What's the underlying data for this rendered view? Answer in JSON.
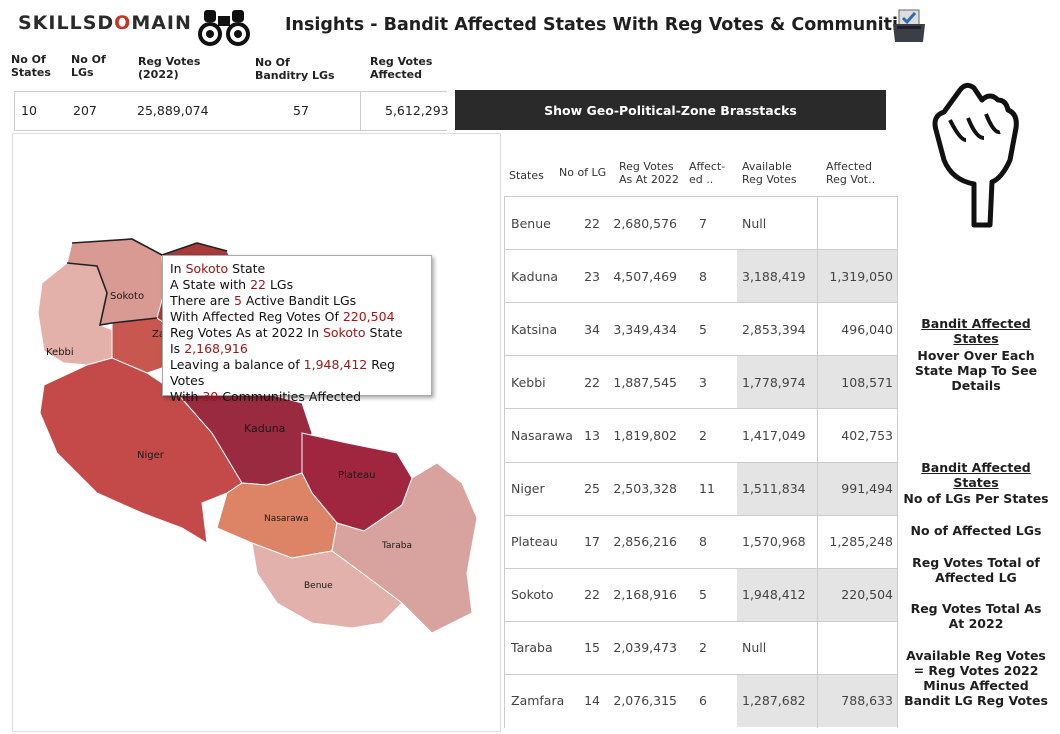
{
  "header": {
    "logo_text": "SKILLSDOMAIN",
    "title": "Insights - Bandit Affected States With Reg Votes & Communities",
    "binoculars_icon": "binoculars-icon",
    "ballot_icon": "ballot-box-icon"
  },
  "kpis": {
    "headers": {
      "states": [
        "No Of",
        "States"
      ],
      "lgs": [
        "No Of",
        "LGs"
      ],
      "reg_votes": [
        "Reg Votes",
        "(2022)"
      ],
      "bandit_lgs": [
        "No Of",
        "Banditry LGs"
      ],
      "affected": [
        "Reg Votes",
        "Affected"
      ]
    },
    "values": {
      "states": "10",
      "lgs": "207",
      "reg_votes": "25,889,074",
      "bandit_lgs": "57",
      "affected": "5,612,293"
    }
  },
  "button": {
    "label": "Show Geo-Political-Zone Brasstacks"
  },
  "map": {
    "labels": {
      "sokoto": "Sokoto",
      "kebbi": "Kebbi",
      "zamfara": "Za",
      "niger": "Niger",
      "kaduna": "Kaduna",
      "plateau": "Plateau",
      "nasarawa": "Nasarawa",
      "taraba": "Taraba",
      "benue": "Benue"
    },
    "colors": {
      "sokoto": "#d99a93",
      "kebbi": "#e4b1aa",
      "zamfara": "#c8584f",
      "katsina": "#a83a3a",
      "niger": "#c44a4a",
      "kaduna": "#9a2a3f",
      "plateau": "#a0263f",
      "nasarawa": "#de8466",
      "taraba": "#d8a39e",
      "benue": "#e2b1ab"
    }
  },
  "tooltip": {
    "l1a": "In ",
    "l1b": "Sokoto",
    "l1c": " State",
    "l2a": "A State with ",
    "l2b": "22",
    "l2c": " LGs",
    "l3a": "There are ",
    "l3b": "5",
    "l3c": " Active Bandit LGs",
    "l4a": "With Affected Reg Votes Of ",
    "l4b": "220,504",
    "l5a": "Reg Votes As at 2022  In ",
    "l5b": "Sokoto",
    "l5c": " State",
    "l6a": "Is ",
    "l6b": "2,168,916",
    "l7a": "Leaving a balance of ",
    "l7b": "1,948,412",
    "l7c": " Reg Votes",
    "l8a": "With ",
    "l8b": "30",
    "l8c": " Communities Affected"
  },
  "table": {
    "headers": {
      "states": "States",
      "lg": "No of LG",
      "reg": [
        "Reg Votes",
        "As  At 2022"
      ],
      "affected": [
        "Affect-",
        "ed .."
      ],
      "available": [
        "Available",
        "Reg Votes"
      ],
      "aff_votes": [
        "Affected",
        "Reg Vot.."
      ]
    },
    "rows": [
      {
        "state": "Benue",
        "lg": "22",
        "reg": "2,680,576",
        "aff": "7",
        "avail": "Null",
        "affv": ""
      },
      {
        "state": "Kaduna",
        "lg": "23",
        "reg": "4,507,469",
        "aff": "8",
        "avail": "3,188,419",
        "affv": "1,319,050"
      },
      {
        "state": "Katsina",
        "lg": "34",
        "reg": "3,349,434",
        "aff": "5",
        "avail": "2,853,394",
        "affv": "496,040"
      },
      {
        "state": "Kebbi",
        "lg": "22",
        "reg": "1,887,545",
        "aff": "3",
        "avail": "1,778,974",
        "affv": "108,571"
      },
      {
        "state": "Nasarawa",
        "lg": "13",
        "reg": "1,819,802",
        "aff": "2",
        "avail": "1,417,049",
        "affv": "402,753"
      },
      {
        "state": "Niger",
        "lg": "25",
        "reg": "2,503,328",
        "aff": "11",
        "avail": "1,511,834",
        "affv": "991,494"
      },
      {
        "state": "Plateau",
        "lg": "17",
        "reg": "2,856,216",
        "aff": "8",
        "avail": "1,570,968",
        "affv": "1,285,248"
      },
      {
        "state": "Sokoto",
        "lg": "22",
        "reg": "2,168,916",
        "aff": "5",
        "avail": "1,948,412",
        "affv": "220,504"
      },
      {
        "state": "Taraba",
        "lg": "15",
        "reg": "2,039,473",
        "aff": "2",
        "avail": "Null",
        "affv": ""
      },
      {
        "state": "Zamfara",
        "lg": "14",
        "reg": "2,076,315",
        "aff": "6",
        "avail": "1,287,682",
        "affv": "788,633"
      }
    ]
  },
  "side": {
    "pointer_icon": "pointing-hand-icon",
    "h1": "Bandit Affected States",
    "p1": "Hover Over Each State Map To See Details",
    "h2": "Bandit Affected States",
    "i1": "No of LGs Per States",
    "i2": "No of Affected LGs",
    "i3": "Reg Votes Total of Affected LG",
    "i4": "Reg Votes Total As At 2022",
    "i5": "Available Reg Votes = Reg Votes 2022 Minus Affected Bandit LG Reg Votes"
  }
}
